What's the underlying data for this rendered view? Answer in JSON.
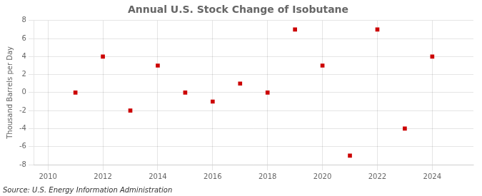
{
  "chart_data": {
    "type": "scatter",
    "title": "Annual U.S. Stock Change of Isobutane",
    "ylabel": "Thousand Barrels per Day",
    "x": [
      2011,
      2012,
      2013,
      2014,
      2015,
      2016,
      2017,
      2018,
      2019,
      2020,
      2021,
      2022,
      2023,
      2024
    ],
    "values": [
      0,
      4,
      -2,
      3,
      0,
      -1,
      1,
      0,
      7,
      3,
      -7,
      7,
      -4,
      4
    ],
    "color": "#cc0000",
    "marker": "square",
    "xlim": [
      2009.5,
      2025.5
    ],
    "xticks": [
      2010,
      2012,
      2014,
      2016,
      2018,
      2020,
      2022,
      2024
    ],
    "ylim": [
      -8,
      8
    ],
    "yticks": [
      -8,
      -6,
      -4,
      -2,
      0,
      2,
      4,
      6,
      8
    ],
    "grid": true,
    "annotations": [
      "Source: U.S. Energy Information Administration"
    ]
  }
}
